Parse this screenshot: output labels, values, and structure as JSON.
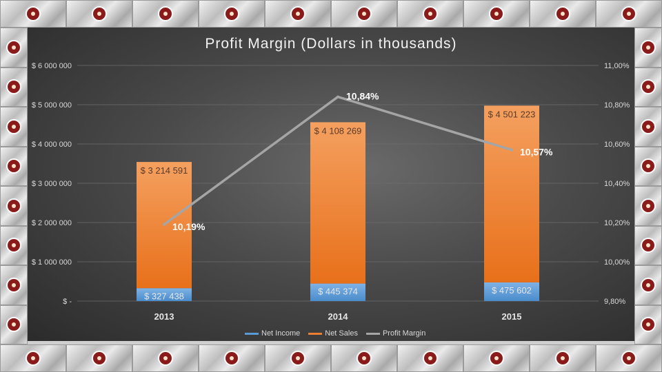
{
  "chart_data": {
    "type": "bar",
    "title": "Profit Margin (Dollars in thousands)",
    "categories": [
      "2013",
      "2014",
      "2015"
    ],
    "stacked": true,
    "series": [
      {
        "name": "Net Income",
        "axis": "left",
        "values": [
          327438,
          445374,
          475602
        ],
        "labels": [
          "$ 327 438",
          "$ 445 374",
          "$ 475 602"
        ],
        "color": "#5b9bd5"
      },
      {
        "name": "Net Sales",
        "axis": "left",
        "values": [
          3214591,
          4108269,
          4501223
        ],
        "labels": [
          "$ 3 214 591",
          "$ 4 108 269",
          "$ 4 501 223"
        ],
        "color": "#ed7d31"
      },
      {
        "name": "Profit Margin",
        "type": "line",
        "axis": "right",
        "values": [
          10.19,
          10.84,
          10.57
        ],
        "labels": [
          "10,19%",
          "10,84%",
          "10,57%"
        ],
        "color": "#a5a5a5"
      }
    ],
    "ylim_left": [
      0,
      6000000
    ],
    "left_ticks": [
      "$ -",
      "$ 1 000 000",
      "$ 2 000 000",
      "$ 3 000 000",
      "$ 4 000 000",
      "$ 5 000 000",
      "$ 6 000 000"
    ],
    "ylim_right": [
      9.8,
      11.0
    ],
    "right_ticks": [
      "9,80%",
      "10,00%",
      "10,20%",
      "10,40%",
      "10,60%",
      "10,80%",
      "11,00%"
    ],
    "grid": true,
    "legend_position": "bottom"
  }
}
